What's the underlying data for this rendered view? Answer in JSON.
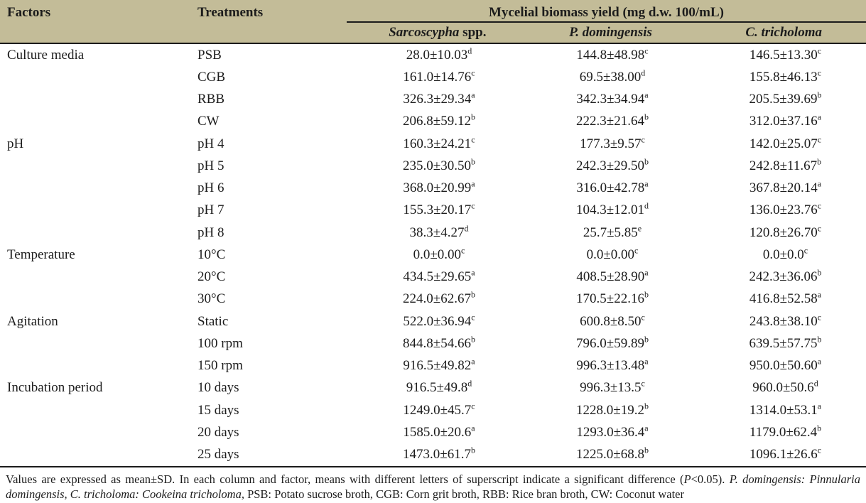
{
  "colors": {
    "header_bg": "#c3bc98",
    "rule": "#1b1b1b",
    "text": "#1c1c1c",
    "page_bg": "#ffffff"
  },
  "table": {
    "header": {
      "factors": "Factors",
      "treatments": "Treatments",
      "spanner": "Mycelial biomass yield (mg d.w. 100/mL)",
      "species": [
        {
          "italic": "Sarcoscypha",
          "roman": " spp."
        },
        {
          "italic": "P. domingensis",
          "roman": ""
        },
        {
          "italic": "C. tricholoma",
          "roman": ""
        }
      ]
    },
    "groups": [
      {
        "factor": "Culture media",
        "rows": [
          {
            "treatment": "PSB",
            "values": [
              {
                "v": "28.0±10.03",
                "s": "d"
              },
              {
                "v": "144.8±48.98",
                "s": "c"
              },
              {
                "v": "146.5±13.30",
                "s": "c"
              }
            ]
          },
          {
            "treatment": "CGB",
            "values": [
              {
                "v": "161.0±14.76",
                "s": "c"
              },
              {
                "v": "69.5±38.00",
                "s": "d"
              },
              {
                "v": "155.8±46.13",
                "s": "c"
              }
            ]
          },
          {
            "treatment": "RBB",
            "values": [
              {
                "v": "326.3±29.34",
                "s": "a"
              },
              {
                "v": "342.3±34.94",
                "s": "a"
              },
              {
                "v": "205.5±39.69",
                "s": "b"
              }
            ]
          },
          {
            "treatment": "CW",
            "values": [
              {
                "v": "206.8±59.12",
                "s": "b"
              },
              {
                "v": "222.3±21.64",
                "s": "b"
              },
              {
                "v": "312.0±37.16",
                "s": "a"
              }
            ]
          }
        ]
      },
      {
        "factor": "pH",
        "rows": [
          {
            "treatment": "pH 4",
            "values": [
              {
                "v": "160.3±24.21",
                "s": "c"
              },
              {
                "v": "177.3±9.57",
                "s": "c"
              },
              {
                "v": "142.0±25.07",
                "s": "c"
              }
            ]
          },
          {
            "treatment": "pH 5",
            "values": [
              {
                "v": "235.0±30.50",
                "s": "b"
              },
              {
                "v": "242.3±29.50",
                "s": "b"
              },
              {
                "v": "242.8±11.67",
                "s": "b"
              }
            ]
          },
          {
            "treatment": "pH 6",
            "values": [
              {
                "v": "368.0±20.99",
                "s": "a"
              },
              {
                "v": "316.0±42.78",
                "s": "a"
              },
              {
                "v": "367.8±20.14",
                "s": "a"
              }
            ]
          },
          {
            "treatment": "pH 7",
            "values": [
              {
                "v": "155.3±20.17",
                "s": "c"
              },
              {
                "v": "104.3±12.01",
                "s": "d"
              },
              {
                "v": "136.0±23.76",
                "s": "c"
              }
            ]
          },
          {
            "treatment": "pH 8",
            "values": [
              {
                "v": "38.3±4.27",
                "s": "d"
              },
              {
                "v": "25.7±5.85",
                "s": "e"
              },
              {
                "v": "120.8±26.70",
                "s": "c"
              }
            ]
          }
        ]
      },
      {
        "factor": "Temperature",
        "rows": [
          {
            "treatment": "10°C",
            "values": [
              {
                "v": "0.0±0.00",
                "s": "c"
              },
              {
                "v": "0.0±0.00",
                "s": "c"
              },
              {
                "v": "0.0±0.0",
                "s": "c"
              }
            ]
          },
          {
            "treatment": "20°C",
            "values": [
              {
                "v": "434.5±29.65",
                "s": "a"
              },
              {
                "v": "408.5±28.90",
                "s": "a"
              },
              {
                "v": "242.3±36.06",
                "s": "b"
              }
            ]
          },
          {
            "treatment": "30°C",
            "values": [
              {
                "v": "224.0±62.67",
                "s": "b"
              },
              {
                "v": "170.5±22.16",
                "s": "b"
              },
              {
                "v": "416.8±52.58",
                "s": "a"
              }
            ]
          }
        ]
      },
      {
        "factor": "Agitation",
        "rows": [
          {
            "treatment": "Static",
            "values": [
              {
                "v": "522.0±36.94",
                "s": "c"
              },
              {
                "v": "600.8±8.50",
                "s": "c"
              },
              {
                "v": "243.8±38.10",
                "s": "c"
              }
            ]
          },
          {
            "treatment": "100 rpm",
            "values": [
              {
                "v": "844.8±54.66",
                "s": "b"
              },
              {
                "v": "796.0±59.89",
                "s": "b"
              },
              {
                "v": "639.5±57.75",
                "s": "b"
              }
            ]
          },
          {
            "treatment": "150 rpm",
            "values": [
              {
                "v": "916.5±49.82",
                "s": "a"
              },
              {
                "v": "996.3±13.48",
                "s": "a"
              },
              {
                "v": "950.0±50.60",
                "s": "a"
              }
            ]
          }
        ]
      },
      {
        "factor": "Incubation period",
        "rows": [
          {
            "treatment": "10 days",
            "values": [
              {
                "v": "916.5±49.8",
                "s": "d"
              },
              {
                "v": "996.3±13.5",
                "s": "c"
              },
              {
                "v": "960.0±50.6",
                "s": "d"
              }
            ]
          },
          {
            "treatment": "15 days",
            "values": [
              {
                "v": "1249.0±45.7",
                "s": "c"
              },
              {
                "v": "1228.0±19.2",
                "s": "b"
              },
              {
                "v": "1314.0±53.1",
                "s": "a"
              }
            ]
          },
          {
            "treatment": "20 days",
            "values": [
              {
                "v": "1585.0±20.6",
                "s": "a"
              },
              {
                "v": "1293.0±36.4",
                "s": "a"
              },
              {
                "v": "1179.0±62.4",
                "s": "b"
              }
            ]
          },
          {
            "treatment": "25 days",
            "values": [
              {
                "v": "1473.0±61.7",
                "s": "b"
              },
              {
                "v": "1225.0±68.8",
                "s": "b"
              },
              {
                "v": "1096.1±26.6",
                "s": "c"
              }
            ]
          }
        ]
      }
    ]
  },
  "footnote": {
    "segments": [
      {
        "t": "Values are expressed as mean±SD. In each column and factor, means with different letters of superscript indicate a significant difference (",
        "i": false
      },
      {
        "t": "P",
        "i": true
      },
      {
        "t": "<0.05). ",
        "i": false
      },
      {
        "t": "P. domingensis: Pinnularia domingensis, C. tricholoma: Cookeina tricholoma,",
        "i": true
      },
      {
        "t": " PSB: Potato sucrose broth, CGB: Corn grit broth, RBB: Rice bran broth, CW: Coconut water",
        "i": false
      }
    ]
  }
}
